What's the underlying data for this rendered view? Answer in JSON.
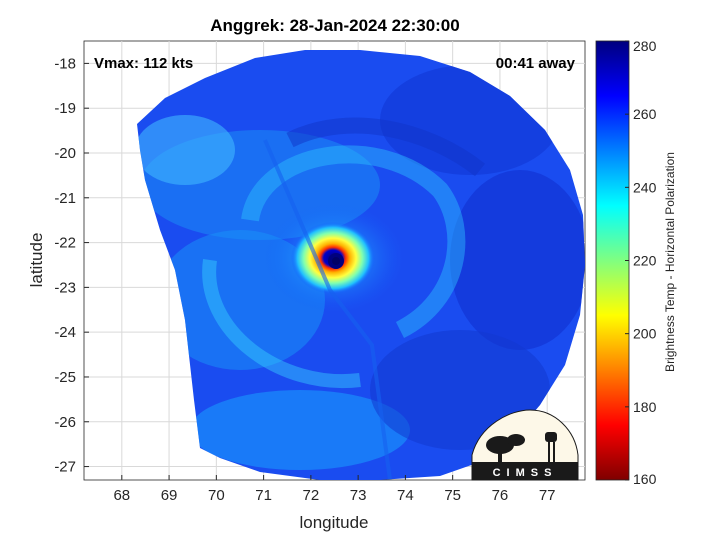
{
  "title": "Anggrek: 28-Jan-2024 22:30:00",
  "annotations": {
    "vmax": "Vmax: 112 kts",
    "time_away": "00:41 away"
  },
  "map": {
    "xlabel": "longitude",
    "ylabel": "latitude",
    "x_ticks": [
      "68",
      "69",
      "70",
      "71",
      "72",
      "73",
      "74",
      "75",
      "76",
      "77"
    ],
    "y_ticks": [
      "-18",
      "-19",
      "-20",
      "-21",
      "-22",
      "-23",
      "-24",
      "-25",
      "-26",
      "-27"
    ],
    "xlim": [
      67.2,
      77.8
    ],
    "ylim": [
      -27.3,
      -17.5
    ],
    "grid": true,
    "storm_center": {
      "lon": 72.4,
      "lat": -22.4
    }
  },
  "colorbar": {
    "label": "Brightness Temp - Horizontal Polarization",
    "ticks": [
      "280",
      "260",
      "240",
      "220",
      "200",
      "180",
      "160"
    ],
    "range": [
      160,
      280
    ],
    "colormap": "jet-reversed",
    "colors": [
      "#7f0000",
      "#ff0000",
      "#ff8000",
      "#ffff00",
      "#80ff80",
      "#00ffff",
      "#0080ff",
      "#0000ff",
      "#00007f"
    ]
  },
  "logo": {
    "text": "CIMSS"
  }
}
